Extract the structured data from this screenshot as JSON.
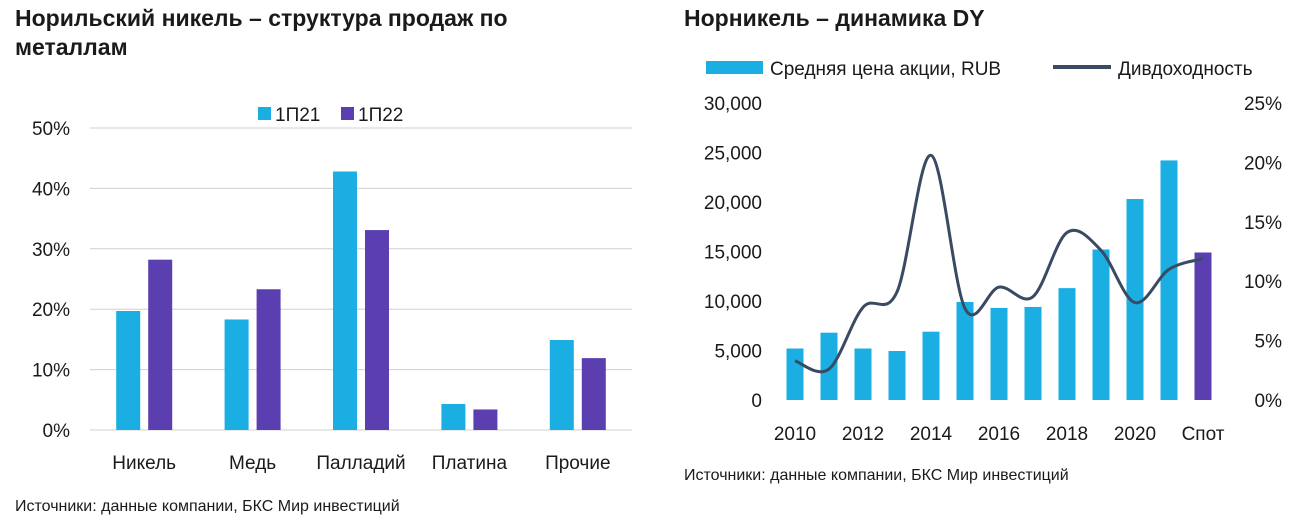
{
  "left_panel": {
    "title": "Норильский никель – структура продаж по металлам",
    "source": "Источники: данные компании, БКС Мир инвестиций"
  },
  "right_panel": {
    "title": "Норникель – динамика DY",
    "source": "Источники: данные компании, БКС Мир инвестиций"
  },
  "colors": {
    "series_a": "#1aaee2",
    "series_b": "#5b3fb0",
    "line": "#3a4a63",
    "grid": "#d0d0d0"
  },
  "chart_data": [
    {
      "type": "bar",
      "categories": [
        "Никель",
        "Медь",
        "Палладий",
        "Платина",
        "Прочие"
      ],
      "series": [
        {
          "name": "1П21",
          "values": [
            0.197,
            0.183,
            0.428,
            0.043,
            0.149
          ]
        },
        {
          "name": "1П22",
          "values": [
            0.282,
            0.233,
            0.331,
            0.034,
            0.119
          ]
        }
      ],
      "ylim": [
        0,
        0.5
      ],
      "yticks": [
        "0%",
        "10%",
        "20%",
        "30%",
        "40%",
        "50%"
      ],
      "grid": true,
      "legend": "top-center"
    },
    {
      "type": "bar+line",
      "categories": [
        "2010",
        "2011",
        "2012",
        "2013",
        "2014",
        "2015",
        "2016",
        "2017",
        "2018",
        "2019",
        "2020",
        "2021",
        "Спот"
      ],
      "xtick_labels": [
        "2010",
        "",
        "2012",
        "",
        "2014",
        "",
        "2016",
        "",
        "2018",
        "",
        "2020",
        "",
        "Спот"
      ],
      "bars": {
        "name": "Средняя цена акции, RUB",
        "values": [
          5200,
          6800,
          5200,
          4950,
          6900,
          9900,
          9300,
          9400,
          11300,
          15200,
          20300,
          24200,
          14900
        ]
      },
      "line": {
        "name": "Дивдоходность",
        "values": [
          0.033,
          0.026,
          0.078,
          0.091,
          0.206,
          0.077,
          0.095,
          0.087,
          0.141,
          0.126,
          0.082,
          0.11,
          0.119
        ]
      },
      "y_left_lim": [
        0,
        30000
      ],
      "y_left_ticks": [
        "0",
        "5,000",
        "10,000",
        "15,000",
        "20,000",
        "25,000",
        "30,000"
      ],
      "y_right_lim": [
        0,
        0.25
      ],
      "y_right_ticks": [
        "0%",
        "5%",
        "10%",
        "15%",
        "20%",
        "25%"
      ],
      "highlight_last_bar": true,
      "legend": "top"
    }
  ]
}
